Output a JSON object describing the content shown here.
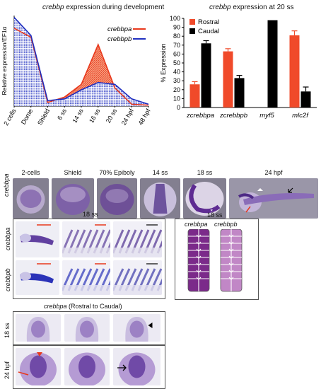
{
  "chart_data": [
    {
      "type": "area",
      "title_gene": "crebbp",
      "title_rest": " expression during development",
      "ylabel": "Relative expression/EF1α",
      "categories": [
        "2 cells",
        "Dome",
        "Shield",
        "6 ss",
        "14 ss",
        "16 ss",
        "20 ss",
        "24 hpf",
        "48 hpf"
      ],
      "series": [
        {
          "name": "crebbpa",
          "values": [
            0.043,
            0.038,
            0.002,
            0.005,
            0.012,
            0.034,
            0.01,
            0.001,
            0.0005
          ],
          "color": "#e8391d"
        },
        {
          "name": "crebbpb",
          "values": [
            0.049,
            0.039,
            0.003,
            0.004,
            0.009,
            0.013,
            0.012,
            0.004,
            0.001
          ],
          "color": "#2030c0"
        }
      ],
      "ylim": [
        0,
        0.05
      ],
      "legend_position": "top-right",
      "grid": false
    },
    {
      "type": "bar",
      "title_gene": "crebbp",
      "title_rest": " expression at 20 ss",
      "ylabel": "% Expression",
      "categories": [
        "zcrebbpa",
        "zcrebbpb",
        "myf5",
        "mlc2f"
      ],
      "series": [
        {
          "name": "Rostral",
          "values": [
            26,
            63,
            0,
            81
          ],
          "errors": [
            3,
            3,
            0,
            5
          ],
          "color": "#f04a2a"
        },
        {
          "name": "Caudal",
          "values": [
            72,
            33,
            98,
            18
          ],
          "errors": [
            3,
            3,
            0,
            5
          ],
          "color": "#000000"
        }
      ],
      "yticks": [
        "0",
        "10",
        "20",
        "30",
        "40",
        "50",
        "60",
        "70",
        "80",
        "90",
        "100"
      ],
      "ylim": [
        0,
        100
      ],
      "legend_position": "top-left",
      "grid": false
    }
  ],
  "row_b": {
    "stages": [
      "2-cells",
      "Shield",
      "70% Epiboly",
      "14 ss",
      "18 ss",
      "24 hpf"
    ],
    "row_label": "crebbpa"
  },
  "row_c": {
    "stage": "18 ss",
    "row_labels": [
      "crebbpa",
      "crebbpb"
    ]
  },
  "schematic": {
    "stage": "18 ss",
    "labels": [
      "crebbpa",
      "crebbpb"
    ],
    "colors": {
      "dark": "#7b2a8a",
      "light": "#c187c6"
    }
  },
  "row_d": {
    "title_gene": "crebbpa",
    "title_rest": " (Rostral to Caudal)",
    "row_labels": [
      "18 ss",
      "24 hpf"
    ]
  },
  "colors": {
    "accent_red": "#e8391d",
    "accent_blue": "#2030c0",
    "stain": "#5b3d95"
  }
}
